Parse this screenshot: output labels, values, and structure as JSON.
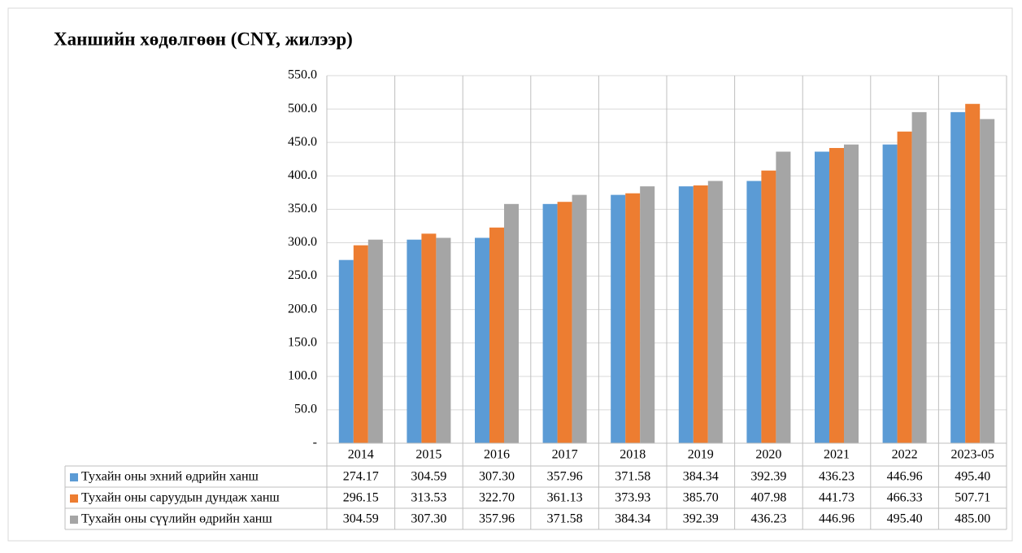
{
  "chart_data": {
    "type": "bar",
    "title": "Ханшийн хөдөлгөөн (CNY, жилээр)",
    "categories": [
      "2014",
      "2015",
      "2016",
      "2017",
      "2018",
      "2019",
      "2020",
      "2021",
      "2022",
      "2023-05"
    ],
    "series": [
      {
        "name": "Тухайн оны эхний өдрийн ханш",
        "color": "#5b9bd5",
        "values": [
          274.17,
          304.59,
          307.3,
          357.96,
          371.58,
          384.34,
          392.39,
          436.23,
          446.96,
          495.4
        ],
        "value_labels": [
          "274.17",
          "304.59",
          "307.30",
          "357.96",
          "371.58",
          "384.34",
          "392.39",
          "436.23",
          "446.96",
          "495.40"
        ]
      },
      {
        "name": "Тухайн оны саруудын дундаж ханш",
        "color": "#ed7d31",
        "values": [
          296.15,
          313.53,
          322.7,
          361.13,
          373.93,
          385.7,
          407.98,
          441.73,
          466.33,
          507.71
        ],
        "value_labels": [
          "296.15",
          "313.53",
          "322.70",
          "361.13",
          "373.93",
          "385.70",
          "407.98",
          "441.73",
          "466.33",
          "507.71"
        ]
      },
      {
        "name": "Тухайн оны сүүлийн өдрийн ханш",
        "color": "#a5a5a5",
        "values": [
          304.59,
          307.3,
          357.96,
          371.58,
          384.34,
          392.39,
          436.23,
          446.96,
          495.4,
          485.0
        ],
        "value_labels": [
          "304.59",
          "307.30",
          "357.96",
          "371.58",
          "384.34",
          "392.39",
          "436.23",
          "446.96",
          "495.40",
          "485.00"
        ]
      }
    ],
    "ylim": [
      0,
      550
    ],
    "yticks": [
      {
        "value": 0,
        "label": "-"
      },
      {
        "value": 50,
        "label": "50.0"
      },
      {
        "value": 100,
        "label": "100.0"
      },
      {
        "value": 150,
        "label": "150.0"
      },
      {
        "value": 200,
        "label": "200.0"
      },
      {
        "value": 250,
        "label": "250.0"
      },
      {
        "value": 300,
        "label": "300.0"
      },
      {
        "value": 350,
        "label": "350.0"
      },
      {
        "value": 400,
        "label": "400.0"
      },
      {
        "value": 450,
        "label": "450.0"
      },
      {
        "value": 500,
        "label": "500.0"
      },
      {
        "value": 550,
        "label": "550.0"
      }
    ],
    "grid": true
  }
}
